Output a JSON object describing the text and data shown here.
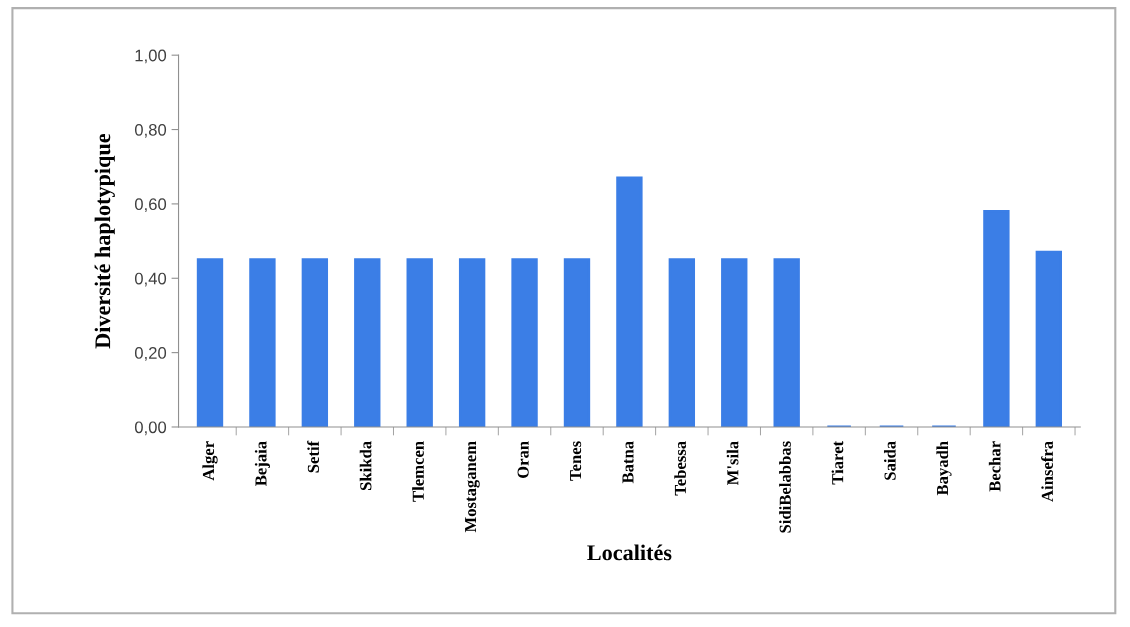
{
  "chart_data": {
    "type": "bar",
    "categories": [
      "Alger",
      "Bejaia",
      "Setif",
      "Skikda",
      "Tlemcen",
      "Mostaganem",
      "Oran",
      "Tenes",
      "Batna",
      "Tebessa",
      "M'sila",
      "SidiBelabbas",
      "Tiaret",
      "Saida",
      "Bayadh",
      "Bechar",
      "Ainsefra"
    ],
    "values": [
      0.45,
      0.45,
      0.45,
      0.45,
      0.45,
      0.45,
      0.45,
      0.45,
      0.67,
      0.45,
      0.45,
      0.45,
      0,
      0,
      0,
      0.58,
      0.47
    ],
    "color": "#3b7ee6",
    "xlabel": "Localités",
    "ylabel": "Diversité haplotypique",
    "ylim": [
      0,
      1
    ],
    "yticks": [
      {
        "value": 0,
        "label": "0,00"
      },
      {
        "value": 0.2,
        "label": "0,20"
      },
      {
        "value": 0.4,
        "label": "0,40"
      },
      {
        "value": 0.6,
        "label": "0,60"
      },
      {
        "value": 0.8,
        "label": "0,80"
      },
      {
        "value": 1,
        "label": "1,00"
      }
    ]
  }
}
